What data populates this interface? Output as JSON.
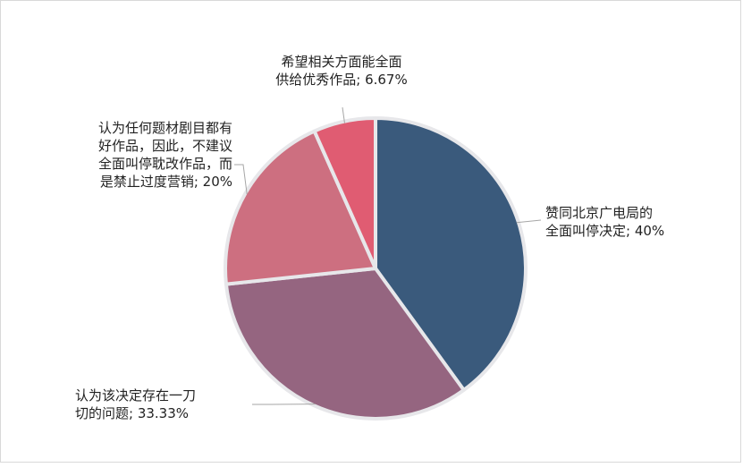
{
  "chart_data": {
    "type": "pie",
    "title": "",
    "slices": [
      {
        "label_lines": [
          "赞同北京广电局的",
          "全面叫停决定; 40%"
        ],
        "value": 40,
        "color": "#3a5a7c"
      },
      {
        "label_lines": [
          "认为该决定存在一刀",
          "切的问题; 33.33%"
        ],
        "value": 33.33,
        "color": "#956580"
      },
      {
        "label_lines": [
          "认为任何题材剧目都有",
          "好作品，因此，不建议",
          "全面叫停耽改作品，而",
          "是禁止过度营销; 20%"
        ],
        "value": 20,
        "color": "#cd6f80"
      },
      {
        "label_lines": [
          "希望相关方面能全面",
          "供给优秀作品; 6.67%"
        ],
        "value": 6.67,
        "color": "#e05c72"
      }
    ]
  }
}
